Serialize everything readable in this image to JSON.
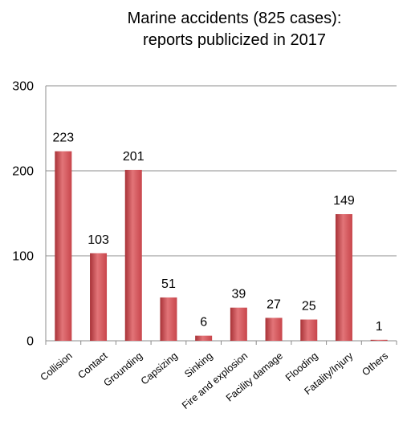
{
  "chart_data": {
    "type": "bar",
    "title_lines": [
      "Marine accidents (825 cases):",
      "reports publicized in 2017"
    ],
    "categories": [
      "Collision",
      "Contact",
      "Grounding",
      "Capsizing",
      "Sinking",
      "Fire and explosion",
      "Facility damage",
      "Flooding",
      "Fatality/Injury",
      "Others"
    ],
    "values": [
      223,
      103,
      201,
      51,
      6,
      39,
      27,
      25,
      149,
      1
    ],
    "ylim": [
      0,
      300
    ],
    "yticks": [
      0,
      100,
      200,
      300
    ],
    "xlabel": "",
    "ylabel": "",
    "grid": true,
    "legend": "none",
    "bar_color": "#c8454b",
    "bar_color_light": "#e27478",
    "bar_color_dark": "#a83237"
  }
}
